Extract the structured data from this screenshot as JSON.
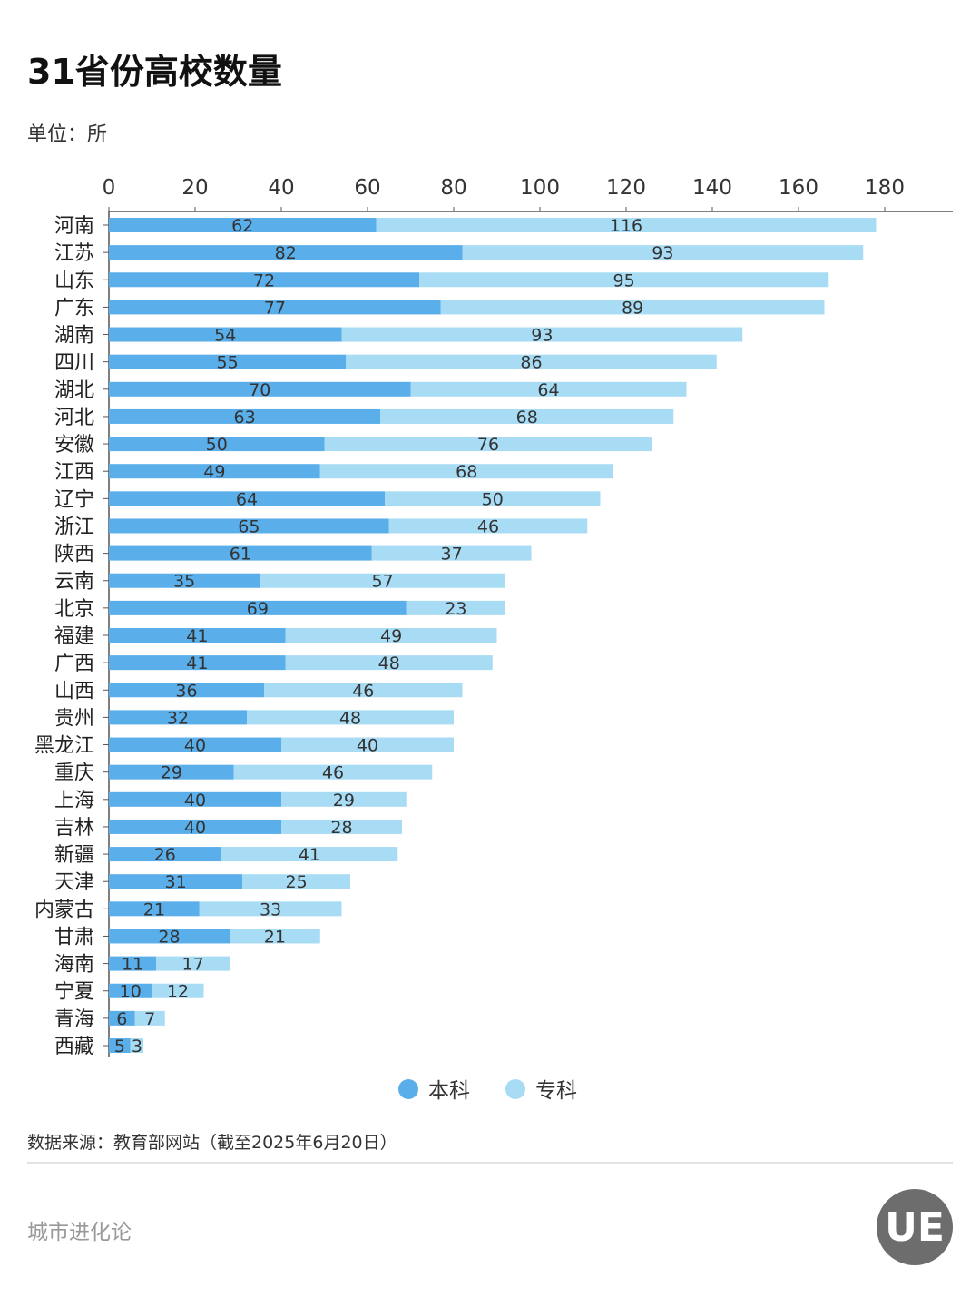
{
  "header": {
    "title": "31省份高校数量",
    "unit": "单位：所"
  },
  "footer": {
    "source": "数据来源：教育部网站（截至2025年6月20日）",
    "brand": "城市进化论",
    "logo_text": "UE"
  },
  "chart_data": {
    "type": "bar",
    "orientation": "horizontal",
    "stacked": true,
    "title": "31省份高校数量",
    "xlim": [
      0,
      195
    ],
    "xticks": [
      0,
      20,
      40,
      60,
      80,
      100,
      120,
      140,
      160,
      180
    ],
    "grid": false,
    "legend_position": "bottom",
    "categories": [
      "河南",
      "江苏",
      "山东",
      "广东",
      "湖南",
      "四川",
      "湖北",
      "河北",
      "安徽",
      "江西",
      "辽宁",
      "浙江",
      "陕西",
      "云南",
      "北京",
      "福建",
      "广西",
      "山西",
      "贵州",
      "黑龙江",
      "重庆",
      "上海",
      "吉林",
      "新疆",
      "天津",
      "内蒙古",
      "甘肃",
      "海南",
      "宁夏",
      "青海",
      "西藏"
    ],
    "series": [
      {
        "name": "本科",
        "color": "#5aaeea",
        "values": [
          62,
          82,
          72,
          77,
          54,
          55,
          70,
          63,
          50,
          49,
          64,
          65,
          61,
          35,
          69,
          41,
          41,
          36,
          32,
          40,
          29,
          40,
          40,
          26,
          31,
          21,
          28,
          11,
          10,
          6,
          5
        ]
      },
      {
        "name": "专科",
        "color": "#a8dcf5",
        "values": [
          116,
          93,
          95,
          89,
          93,
          86,
          64,
          68,
          76,
          68,
          50,
          46,
          37,
          57,
          23,
          49,
          48,
          46,
          48,
          40,
          46,
          29,
          28,
          41,
          25,
          33,
          21,
          17,
          12,
          7,
          3
        ]
      }
    ]
  }
}
